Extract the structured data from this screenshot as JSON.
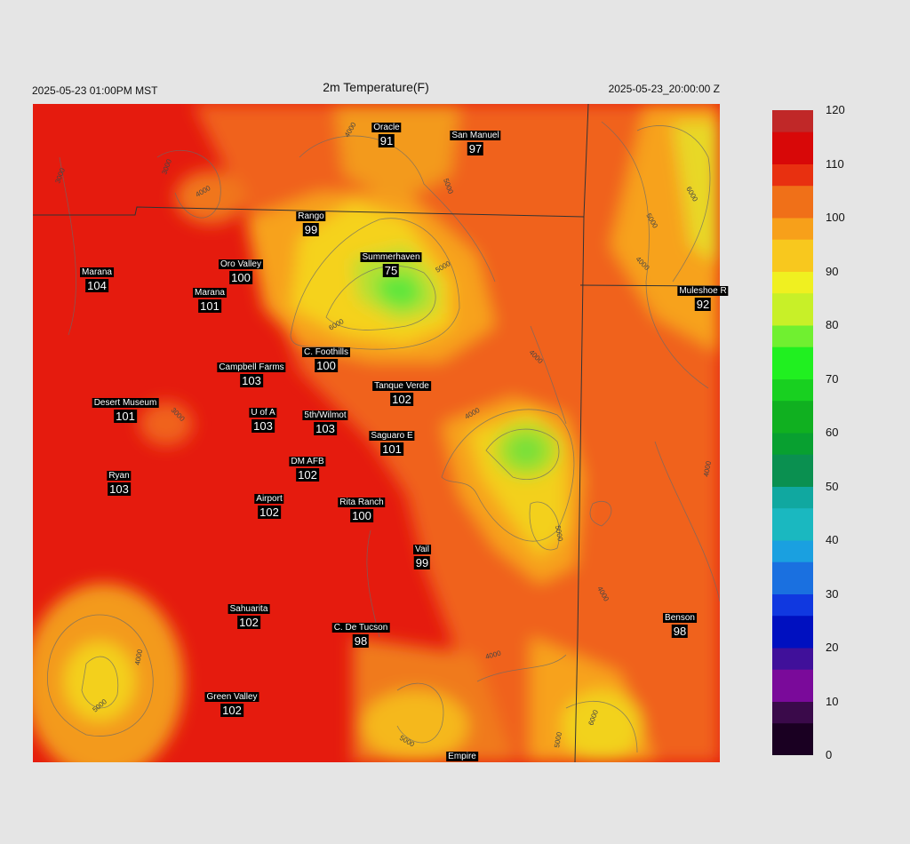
{
  "header": {
    "local_time": "2025-05-23 01:00PM MST",
    "title": "2m Temperature(F)",
    "utc_time": "2025-05-23_20:00:00 Z"
  },
  "colorbar": {
    "min": 0,
    "max": 120,
    "ticks": [
      "120",
      "110",
      "100",
      "90",
      "80",
      "70",
      "60",
      "50",
      "40",
      "30",
      "20",
      "10",
      "0"
    ]
  },
  "contour_labels": [
    "3000",
    "4000",
    "5000",
    "6000"
  ],
  "stations": [
    {
      "name": "Oracle",
      "value": "91"
    },
    {
      "name": "San Manuel",
      "value": "97"
    },
    {
      "name": "Rango",
      "value": "99"
    },
    {
      "name": "Summerhaven",
      "value": "75"
    },
    {
      "name": "Marana",
      "value": "104"
    },
    {
      "name": "Oro Valley",
      "value": "100"
    },
    {
      "name": "Marana",
      "value": "101"
    },
    {
      "name": "Muleshoe R",
      "value": "92"
    },
    {
      "name": "C. Foothills",
      "value": "100"
    },
    {
      "name": "Campbell Farms",
      "value": "103"
    },
    {
      "name": "Tanque Verde",
      "value": "102"
    },
    {
      "name": "Desert Museum",
      "value": "101"
    },
    {
      "name": "U of A",
      "value": "103"
    },
    {
      "name": "5th/Wilmot",
      "value": "103"
    },
    {
      "name": "Saguaro E",
      "value": "101"
    },
    {
      "name": "DM AFB",
      "value": "102"
    },
    {
      "name": "Ryan",
      "value": "103"
    },
    {
      "name": "Airport",
      "value": "102"
    },
    {
      "name": "Rita Ranch",
      "value": "100"
    },
    {
      "name": "Vail",
      "value": "99"
    },
    {
      "name": "Sahuarita",
      "value": "102"
    },
    {
      "name": "C. De Tucson",
      "value": "98"
    },
    {
      "name": "Benson",
      "value": "98"
    },
    {
      "name": "Green Valley",
      "value": "102"
    },
    {
      "name": "Empire",
      "value": ""
    }
  ]
}
